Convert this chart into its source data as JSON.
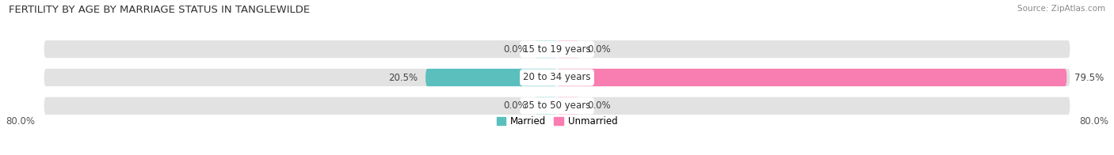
{
  "title": "FERTILITY BY AGE BY MARRIAGE STATUS IN TANGLEWILDE",
  "source": "Source: ZipAtlas.com",
  "categories": [
    "15 to 19 years",
    "20 to 34 years",
    "35 to 50 years"
  ],
  "married_values": [
    0.0,
    20.5,
    0.0
  ],
  "unmarried_values": [
    0.0,
    79.5,
    0.0
  ],
  "married_color": "#5bbfbe",
  "unmarried_color": "#f87db0",
  "married_stub_color": "#96d5d4",
  "unmarried_stub_color": "#f9aac8",
  "bar_bg_color": "#e2e2e2",
  "max_val": 80.0,
  "stub_val": 3.5,
  "left_label": "80.0%",
  "right_label": "80.0%",
  "title_fontsize": 9.5,
  "label_fontsize": 8.5,
  "bar_height": 0.62,
  "figsize": [
    14.06,
    1.96
  ],
  "dpi": 100
}
